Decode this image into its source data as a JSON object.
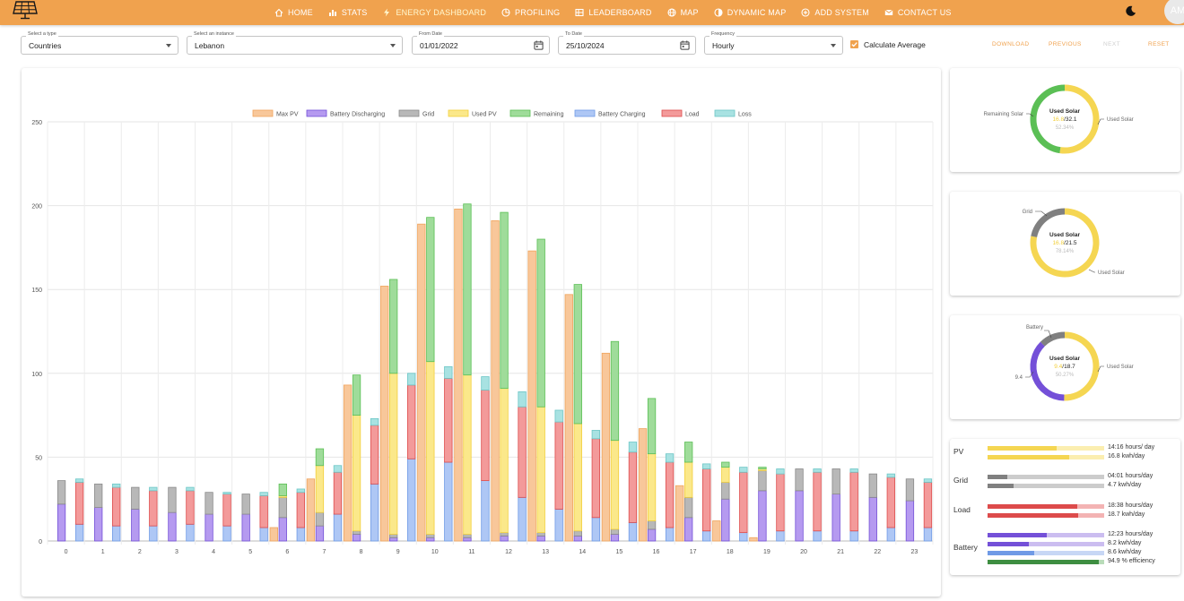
{
  "nav": {
    "items": [
      {
        "label": "HOME",
        "icon": "home-icon"
      },
      {
        "label": "STATS",
        "icon": "bar-chart-icon"
      },
      {
        "label": "ENERGY DASHBOARD",
        "icon": "bolt-icon",
        "active": true
      },
      {
        "label": "PROFILING",
        "icon": "pie-icon"
      },
      {
        "label": "LEADERBOARD",
        "icon": "leaderboard-icon"
      },
      {
        "label": "MAP",
        "icon": "globe-icon"
      },
      {
        "label": "DYNAMIC MAP",
        "icon": "contrast-icon"
      },
      {
        "label": "ADD SYSTEM",
        "icon": "plus-circle-icon"
      },
      {
        "label": "CONTACT US",
        "icon": "mail-icon"
      }
    ],
    "avatar": "AM"
  },
  "controls": {
    "type_label": "Select a type",
    "type_value": "Countries",
    "instance_label": "Select an instance",
    "instance_value": "Lebanon",
    "from_label": "From Date",
    "from_value": "01/01/2022",
    "to_label": "To Date",
    "to_value": "25/10/2024",
    "freq_label": "Frequency",
    "freq_value": "Hourly",
    "average_label": "Calculate Average",
    "average_checked": true,
    "download": "DOWNLOAD",
    "previous": "PREVIOUS",
    "next": "NEXT",
    "reset": "RESET"
  },
  "colors": {
    "accent": "#f0a24e",
    "series": {
      "Max PV": [
        "#f8c79a",
        "#f0a45c"
      ],
      "Battery Discharging": [
        "#b59af0",
        "#7450d8"
      ],
      "Grid": [
        "#b8b8b8",
        "#8a8a8a"
      ],
      "Used PV": [
        "#fbe88a",
        "#f2cf3b"
      ],
      "Remaining": [
        "#9fdc9a",
        "#5bbf55"
      ],
      "Battery Charging": [
        "#aec7f5",
        "#6f9ae6"
      ],
      "Load": [
        "#f39a9a",
        "#dd4b4b"
      ],
      "Loss": [
        "#a8e2e2",
        "#6cc6c6"
      ]
    }
  },
  "chart_data": {
    "type": "bar",
    "x": [
      "0",
      "1",
      "2",
      "3",
      "4",
      "5",
      "6",
      "7",
      "8",
      "9",
      "10",
      "11",
      "12",
      "13",
      "14",
      "15",
      "16",
      "17",
      "18",
      "19",
      "20",
      "21",
      "22",
      "23"
    ],
    "ylim": [
      0,
      250
    ],
    "yticks": [
      "0",
      "50",
      "100",
      "150",
      "200",
      "250"
    ],
    "legend": [
      "Max PV",
      "Battery Discharging",
      "Grid",
      "Used PV",
      "Remaining",
      "Battery Charging",
      "Load",
      "Loss"
    ],
    "legend_position": "top",
    "grid": [
      14,
      14,
      13,
      15,
      13,
      12,
      12,
      8,
      2,
      2,
      2,
      2,
      2,
      2,
      3,
      3,
      5,
      12,
      10,
      12,
      13,
      15,
      14,
      13
    ],
    "max_pv": [
      0,
      0,
      0,
      0,
      0,
      0,
      8,
      37,
      93,
      152,
      189,
      198,
      191,
      173,
      147,
      112,
      67,
      33,
      12,
      2,
      0,
      0,
      0,
      0
    ],
    "battery_discharging": [
      22,
      20,
      19,
      17,
      16,
      16,
      14,
      9,
      4,
      2,
      2,
      2,
      3,
      3,
      3,
      4,
      7,
      14,
      25,
      30,
      30,
      28,
      26,
      24
    ],
    "used_pv": [
      0,
      0,
      0,
      0,
      0,
      0,
      1,
      28,
      69,
      96,
      103,
      95,
      86,
      75,
      64,
      53,
      40,
      21,
      9,
      1,
      0,
      0,
      0,
      0
    ],
    "remaining": [
      0,
      0,
      0,
      0,
      0,
      0,
      7,
      10,
      24,
      56,
      86,
      102,
      105,
      100,
      83,
      59,
      33,
      12,
      3,
      1,
      0,
      0,
      0,
      0
    ],
    "battery_charging": [
      10,
      9,
      9,
      10,
      9,
      8,
      8,
      16,
      34,
      49,
      47,
      36,
      26,
      19,
      14,
      11,
      8,
      6,
      5,
      6,
      6,
      6,
      8,
      8
    ],
    "load": [
      25,
      23,
      21,
      20,
      19,
      19,
      21,
      25,
      35,
      44,
      50,
      54,
      54,
      52,
      47,
      42,
      39,
      37,
      36,
      34,
      35,
      35,
      30,
      27
    ],
    "loss": [
      2,
      2,
      2,
      2,
      1,
      2,
      2,
      4,
      4,
      7,
      7,
      8,
      9,
      7,
      5,
      6,
      5,
      3,
      3,
      3,
      2,
      2,
      2,
      2
    ]
  },
  "donuts": [
    {
      "title": "Used Solar",
      "used": "16.8",
      "total": "/32.1",
      "percent": "52.34%",
      "left_label": "Remaining Solar",
      "right_label": "Used Solar",
      "fraction": 0.5234,
      "used_color": "#f5d652",
      "other_color": "#5bbf55"
    },
    {
      "title": "Used Solar",
      "used": "16.8",
      "total": "/21.5",
      "percent": "78.14%",
      "left_label": "Grid",
      "right_label": "Used Solar",
      "fraction": 0.7814,
      "used_color": "#f5d652",
      "other_color": "#808080"
    },
    {
      "title": "Used Solar",
      "used": "9.4",
      "total": "/18.7",
      "percent": "50.27%",
      "left_label": "Battery",
      "side_value": "9.4",
      "right_label": "Used Solar",
      "fraction": 0.5027,
      "used_color": "#f5d652",
      "other_color": "#7450d8",
      "third_color": "#808080"
    }
  ],
  "summary": [
    {
      "label": "PV",
      "bars": [
        {
          "fraction": 0.59,
          "color": "#f5d652",
          "track": "#fbeeb0",
          "text": "14:16 hours/ day"
        },
        {
          "fraction": 0.7,
          "color": "#f5d652",
          "track": "#fbeeb0",
          "text": "16.8 kwh/day"
        }
      ]
    },
    {
      "label": "Grid",
      "bars": [
        {
          "fraction": 0.17,
          "color": "#808080",
          "track": "#cccccc",
          "text": "04:01 hours/day"
        },
        {
          "fraction": 0.22,
          "color": "#808080",
          "track": "#cccccc",
          "text": "4.7 kwh/day"
        }
      ]
    },
    {
      "label": "Load",
      "bars": [
        {
          "fraction": 0.77,
          "color": "#dd4b4b",
          "track": "#f3b3b3",
          "text": "18:38 hours/day"
        },
        {
          "fraction": 0.78,
          "color": "#dd4b4b",
          "track": "#f3b3b3",
          "text": "18.7 kwh/day"
        }
      ]
    },
    {
      "label": "Battery",
      "bars": [
        {
          "fraction": 0.51,
          "color": "#7450d8",
          "track": "#cbbdf0",
          "text": "12:23 hours/day"
        },
        {
          "fraction": 0.35,
          "color": "#7450d8",
          "track": "#cbbdf0",
          "text": "8.2 kwh/day"
        },
        {
          "fraction": 0.4,
          "color": "#6f9ae6",
          "track": "#c7d7f5",
          "text": "8.6 kwh/day"
        },
        {
          "fraction": 0.95,
          "color": "#3e8e41",
          "track": "#b9dcb9",
          "text": "94.9 % efficiency"
        }
      ]
    }
  ]
}
